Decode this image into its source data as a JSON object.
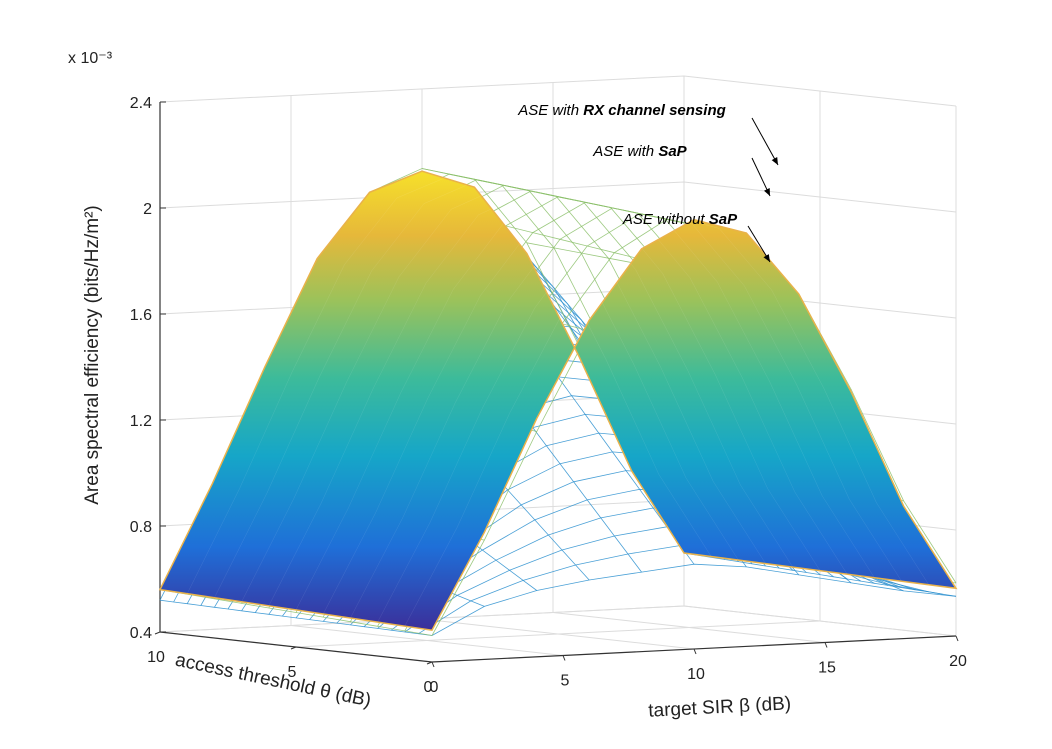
{
  "chart_data": {
    "type": "surface3d",
    "zlabel": "Area spectral efficiency (bits/Hz/m²)",
    "xlabel": "target SIR β (dB)",
    "ylabel": "access threshold θ (dB)",
    "zscale_label": "x 10⁻³",
    "xticks": [
      "0",
      "5",
      "10",
      "15",
      "20"
    ],
    "yticks": [
      "0",
      "5",
      "10"
    ],
    "zticks": [
      "0.4",
      "0.8",
      "1.2",
      "1.6",
      "2",
      "2.4"
    ],
    "xlim": [
      0,
      20
    ],
    "ylim": [
      0,
      10
    ],
    "zlim": [
      0.4,
      2.4
    ],
    "grid": true,
    "x": [
      0,
      2,
      4,
      6,
      8,
      10,
      12,
      14,
      16,
      18,
      20
    ],
    "series": [
      {
        "name": "ASE with RX channel sensing",
        "style": "mesh-yellow-to-blue",
        "z_at_theta_10": [
          0.56,
          0.95,
          1.38,
          1.78,
          2.02,
          2.1,
          2.05,
          1.8,
          1.4,
          0.95,
          0.62
        ],
        "z_at_theta_0": [
          0.5,
          0.85,
          1.25,
          1.62,
          1.88,
          2.0,
          1.95,
          1.72,
          1.35,
          0.92,
          0.6
        ]
      },
      {
        "name": "ASE with SaP",
        "style": "surface-parula",
        "z_at_theta_10": [
          0.56,
          0.95,
          1.38,
          1.78,
          2.02,
          2.09,
          2.02,
          1.76,
          1.36,
          0.92,
          0.6
        ],
        "z_at_theta_0": [
          0.52,
          0.88,
          1.3,
          1.66,
          1.92,
          2.02,
          1.96,
          1.72,
          1.34,
          0.9,
          0.58
        ]
      },
      {
        "name": "ASE without SaP",
        "style": "mesh-blue",
        "z_at_theta_10": [
          0.52,
          0.9,
          1.3,
          1.7,
          1.95,
          2.02,
          1.98,
          1.75,
          1.36,
          0.92,
          0.6
        ],
        "z_at_theta_0": [
          0.5,
          0.6,
          0.65,
          0.68,
          0.7,
          0.72,
          0.7,
          0.66,
          0.62,
          0.58,
          0.55
        ]
      }
    ],
    "annotations": [
      {
        "prefix": "ASE with ",
        "bold": "RX channel sensing"
      },
      {
        "prefix": "ASE with ",
        "bold": "SaP"
      },
      {
        "prefix": "ASE without ",
        "bold": "SaP"
      }
    ]
  }
}
